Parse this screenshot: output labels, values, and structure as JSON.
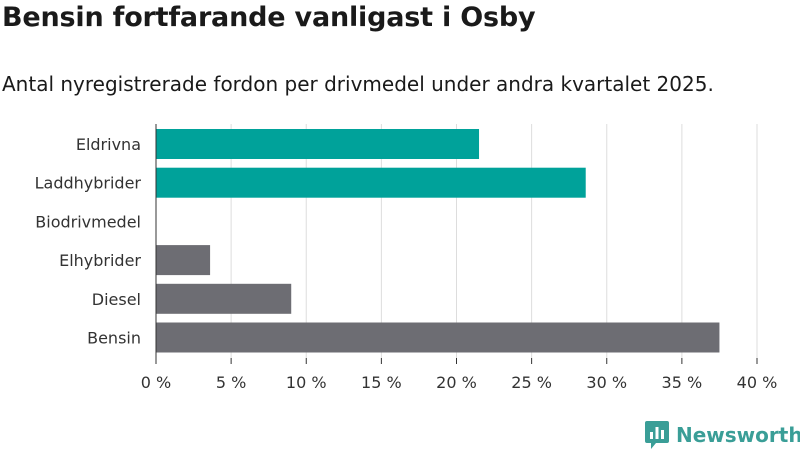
{
  "title": "Bensin fortfarande vanligast i Osby",
  "subtitle": "Antal nyregistrerade fordon per drivmedel under andra kvartalet 2025.",
  "brand": {
    "name": "Newsworthy",
    "color": "#3a9e97"
  },
  "colors": {
    "highlight": "#00a29a",
    "default": "#6d6d73",
    "grid": "#dddddd"
  },
  "chart_data": {
    "type": "bar",
    "orientation": "horizontal",
    "categories": [
      "Eldrivna",
      "Laddhybrider",
      "Biodrivmedel",
      "Elhybrider",
      "Diesel",
      "Bensin"
    ],
    "values": [
      21.5,
      28.6,
      0,
      3.6,
      9.0,
      37.5
    ],
    "highlighted": [
      true,
      true,
      false,
      false,
      false,
      false
    ],
    "xlim": [
      0,
      40
    ],
    "x_ticks": [
      0,
      5,
      10,
      15,
      20,
      25,
      30,
      35,
      40
    ],
    "x_tick_labels": [
      "0 %",
      "5 %",
      "10 %",
      "15 %",
      "20 %",
      "25 %",
      "30 %",
      "35 %",
      "40 %"
    ],
    "grid": true
  }
}
